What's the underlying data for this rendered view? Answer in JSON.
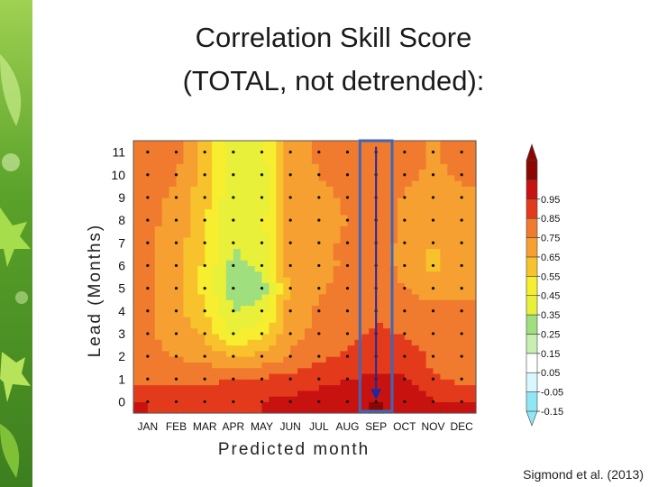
{
  "slide": {
    "title_line1": "Correlation Skill Score",
    "title_line2": "(TOTAL, not detrended):",
    "credit": "Sigmond et al. (2013)"
  },
  "colors": {
    "leaf_green": "#7fbf3a",
    "highlight_box": "#3d67b8",
    "arrow": "#1c2a9e"
  },
  "chart_data": {
    "type": "heatmap",
    "title": "",
    "xlabel": "Predicted  month",
    "ylabel": "Lead  (Months)",
    "x_categories": [
      "JAN",
      "FEB",
      "MAR",
      "APR",
      "MAY",
      "JUN",
      "JUL",
      "AUG",
      "SEP",
      "OCT",
      "NOV",
      "DEC"
    ],
    "y_categories": [
      "0",
      "1",
      "2",
      "3",
      "4",
      "5",
      "6",
      "7",
      "8",
      "9",
      "10",
      "11"
    ],
    "colorbar": {
      "levels": [
        "-0.15",
        "-0.05",
        "0.05",
        "0.15",
        "0.25",
        "0.35",
        "0.45",
        "0.55",
        "0.65",
        "0.75",
        "0.85",
        "0.95"
      ],
      "colors": [
        "#8fe6f5",
        "#d9f7ff",
        "#ffffff",
        "#c6efb1",
        "#9fdf7e",
        "#e8f03a",
        "#f6ee2e",
        "#f8c22c",
        "#f5a030",
        "#f07a2e",
        "#e43a1c",
        "#c81210",
        "#8c0604"
      ]
    },
    "highlight": {
      "month": "SEP",
      "arrow_from_lead": 11,
      "arrow_to_lead": 0
    },
    "values": [
      [
        0.85,
        0.84,
        0.83,
        0.84,
        0.85,
        0.88,
        0.9,
        0.93,
        0.96,
        0.92,
        0.86,
        0.85
      ],
      [
        0.72,
        0.72,
        0.73,
        0.75,
        0.77,
        0.79,
        0.82,
        0.85,
        0.87,
        0.86,
        0.76,
        0.73
      ],
      [
        0.67,
        0.65,
        0.62,
        0.55,
        0.58,
        0.66,
        0.73,
        0.77,
        0.8,
        0.82,
        0.72,
        0.69
      ],
      [
        0.66,
        0.62,
        0.53,
        0.33,
        0.43,
        0.62,
        0.68,
        0.72,
        0.76,
        0.74,
        0.7,
        0.67
      ],
      [
        0.66,
        0.6,
        0.45,
        0.24,
        0.3,
        0.6,
        0.66,
        0.7,
        0.74,
        0.72,
        0.68,
        0.66
      ],
      [
        0.66,
        0.58,
        0.42,
        0.2,
        0.18,
        0.58,
        0.64,
        0.68,
        0.72,
        0.65,
        0.6,
        0.64
      ],
      [
        0.66,
        0.58,
        0.43,
        0.22,
        0.27,
        0.62,
        0.63,
        0.66,
        0.7,
        0.62,
        0.52,
        0.62
      ],
      [
        0.66,
        0.6,
        0.45,
        0.25,
        0.3,
        0.6,
        0.61,
        0.68,
        0.7,
        0.62,
        0.55,
        0.62
      ],
      [
        0.68,
        0.62,
        0.47,
        0.27,
        0.32,
        0.62,
        0.55,
        0.66,
        0.71,
        0.64,
        0.58,
        0.62
      ],
      [
        0.68,
        0.63,
        0.48,
        0.27,
        0.28,
        0.62,
        0.62,
        0.67,
        0.72,
        0.64,
        0.55,
        0.62
      ],
      [
        0.7,
        0.66,
        0.5,
        0.3,
        0.3,
        0.62,
        0.65,
        0.69,
        0.74,
        0.68,
        0.63,
        0.67
      ],
      [
        0.7,
        0.68,
        0.52,
        0.3,
        0.32,
        0.62,
        0.66,
        0.7,
        0.74,
        0.68,
        0.64,
        0.68
      ]
    ]
  }
}
